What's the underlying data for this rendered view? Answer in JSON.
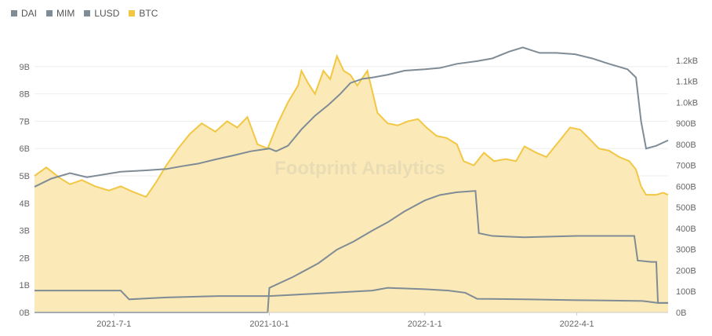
{
  "chart_data": {
    "type": "line",
    "watermark": "Footprint Analytics",
    "legend": {
      "placement": "top-left"
    },
    "colors": {
      "DAI": "#7f8c95",
      "MIM": "#7f8c95",
      "LUSD": "#7f8c95",
      "BTC": "#f2c744",
      "btc_fill": "#fbe9b8",
      "grid": "#eeeeee"
    },
    "x_ticks": [
      "2021-7-1",
      "2021-10-1",
      "2022-1-1",
      "2022-4-1"
    ],
    "y_left_ticks": [
      "0B",
      "1B",
      "2B",
      "3B",
      "4B",
      "5B",
      "6B",
      "7B",
      "8B",
      "9B"
    ],
    "y_right_ticks": [
      "0B",
      "100B",
      "200B",
      "300B",
      "400B",
      "500B",
      "600B",
      "700B",
      "800B",
      "900B",
      "1.0kB",
      "1.1kB",
      "1.2kB"
    ],
    "ylim_left": [
      0,
      10
    ],
    "ylim_right": [
      0,
      1300
    ],
    "x_date_range": [
      "2021-05-15",
      "2022-05-25"
    ],
    "series": [
      {
        "name": "DAI",
        "axis": "left",
        "points": [
          [
            "2021-05-15",
            4.6
          ],
          [
            "2021-05-25",
            4.9
          ],
          [
            "2021-06-05",
            5.1
          ],
          [
            "2021-06-15",
            4.95
          ],
          [
            "2021-06-25",
            5.05
          ],
          [
            "2021-07-05",
            5.15
          ],
          [
            "2021-07-20",
            5.2
          ],
          [
            "2021-08-01",
            5.25
          ],
          [
            "2021-08-10",
            5.35
          ],
          [
            "2021-08-20",
            5.45
          ],
          [
            "2021-08-30",
            5.6
          ],
          [
            "2021-09-10",
            5.75
          ],
          [
            "2021-09-20",
            5.9
          ],
          [
            "2021-10-01",
            6.0
          ],
          [
            "2021-10-05",
            5.9
          ],
          [
            "2021-10-12",
            6.1
          ],
          [
            "2021-10-20",
            6.7
          ],
          [
            "2021-10-28",
            7.2
          ],
          [
            "2021-11-05",
            7.6
          ],
          [
            "2021-11-12",
            8.0
          ],
          [
            "2021-11-18",
            8.4
          ],
          [
            "2021-11-25",
            8.55
          ],
          [
            "2021-12-01",
            8.6
          ],
          [
            "2021-12-10",
            8.7
          ],
          [
            "2021-12-20",
            8.85
          ],
          [
            "2022-01-01",
            8.9
          ],
          [
            "2022-01-10",
            8.95
          ],
          [
            "2022-01-20",
            9.1
          ],
          [
            "2022-02-01",
            9.2
          ],
          [
            "2022-02-10",
            9.3
          ],
          [
            "2022-02-20",
            9.55
          ],
          [
            "2022-02-28",
            9.7
          ],
          [
            "2022-03-05",
            9.6
          ],
          [
            "2022-03-10",
            9.5
          ],
          [
            "2022-03-20",
            9.5
          ],
          [
            "2022-03-31",
            9.45
          ],
          [
            "2022-04-10",
            9.3
          ],
          [
            "2022-04-20",
            9.1
          ],
          [
            "2022-05-01",
            8.9
          ],
          [
            "2022-05-06",
            8.6
          ],
          [
            "2022-05-09",
            7.0
          ],
          [
            "2022-05-12",
            6.0
          ],
          [
            "2022-05-18",
            6.1
          ],
          [
            "2022-05-25",
            6.3
          ]
        ]
      },
      {
        "name": "MIM",
        "axis": "left",
        "points": [
          [
            "2021-05-15",
            0
          ],
          [
            "2021-09-30",
            0
          ],
          [
            "2021-10-01",
            0.9
          ],
          [
            "2021-10-15",
            1.3
          ],
          [
            "2021-10-30",
            1.8
          ],
          [
            "2021-11-10",
            2.3
          ],
          [
            "2021-11-20",
            2.6
          ],
          [
            "2021-12-01",
            3.0
          ],
          [
            "2021-12-10",
            3.3
          ],
          [
            "2021-12-20",
            3.7
          ],
          [
            "2022-01-01",
            4.1
          ],
          [
            "2022-01-10",
            4.3
          ],
          [
            "2022-01-20",
            4.4
          ],
          [
            "2022-01-31",
            4.45
          ],
          [
            "2022-02-02",
            2.9
          ],
          [
            "2022-02-10",
            2.8
          ],
          [
            "2022-03-01",
            2.75
          ],
          [
            "2022-04-01",
            2.8
          ],
          [
            "2022-05-05",
            2.8
          ],
          [
            "2022-05-07",
            1.9
          ],
          [
            "2022-05-15",
            1.85
          ],
          [
            "2022-05-18",
            1.85
          ],
          [
            "2022-05-19",
            0.35
          ],
          [
            "2022-05-25",
            0.35
          ]
        ]
      },
      {
        "name": "LUSD",
        "axis": "left",
        "points": [
          [
            "2021-05-15",
            0.8
          ],
          [
            "2021-07-05",
            0.8
          ],
          [
            "2021-07-10",
            0.48
          ],
          [
            "2021-08-01",
            0.55
          ],
          [
            "2021-09-01",
            0.6
          ],
          [
            "2021-10-01",
            0.6
          ],
          [
            "2021-11-01",
            0.7
          ],
          [
            "2021-12-01",
            0.8
          ],
          [
            "2021-12-10",
            0.9
          ],
          [
            "2022-01-01",
            0.85
          ],
          [
            "2022-01-15",
            0.8
          ],
          [
            "2022-01-25",
            0.72
          ],
          [
            "2022-02-01",
            0.5
          ],
          [
            "2022-03-01",
            0.48
          ],
          [
            "2022-04-01",
            0.45
          ],
          [
            "2022-05-10",
            0.42
          ],
          [
            "2022-05-19",
            0.35
          ],
          [
            "2022-05-25",
            0.35
          ]
        ]
      },
      {
        "name": "BTC",
        "axis": "right",
        "points": [
          [
            "2021-05-15",
            650
          ],
          [
            "2021-05-22",
            690
          ],
          [
            "2021-05-30",
            640
          ],
          [
            "2021-06-05",
            610
          ],
          [
            "2021-06-12",
            630
          ],
          [
            "2021-06-20",
            600
          ],
          [
            "2021-06-28",
            580
          ],
          [
            "2021-07-05",
            600
          ],
          [
            "2021-07-12",
            575
          ],
          [
            "2021-07-20",
            550
          ],
          [
            "2021-07-26",
            620
          ],
          [
            "2021-08-01",
            700
          ],
          [
            "2021-08-08",
            780
          ],
          [
            "2021-08-15",
            850
          ],
          [
            "2021-08-22",
            900
          ],
          [
            "2021-08-30",
            860
          ],
          [
            "2021-09-06",
            910
          ],
          [
            "2021-09-12",
            880
          ],
          [
            "2021-09-18",
            930
          ],
          [
            "2021-09-24",
            800
          ],
          [
            "2021-09-30",
            780
          ],
          [
            "2021-10-06",
            900
          ],
          [
            "2021-10-12,",
            1000
          ],
          [
            "2021-10-18",
            1080
          ],
          [
            "2021-10-20",
            1150
          ],
          [
            "2021-10-24",
            1090
          ],
          [
            "2021-10-28",
            1040
          ],
          [
            "2021-11-02",
            1150
          ],
          [
            "2021-11-06",
            1110
          ],
          [
            "2021-11-10",
            1220
          ],
          [
            "2021-11-14",
            1150
          ],
          [
            "2021-11-18",
            1130
          ],
          [
            "2021-11-22",
            1080
          ],
          [
            "2021-11-28",
            1150
          ],
          [
            "2021-12-04",
            950
          ],
          [
            "2021-12-10",
            900
          ],
          [
            "2021-12-16",
            890
          ],
          [
            "2021-12-22",
            910
          ],
          [
            "2021-12-28",
            920
          ],
          [
            "2022-01-02",
            880
          ],
          [
            "2022-01-08",
            840
          ],
          [
            "2022-01-14",
            830
          ],
          [
            "2022-01-20",
            800
          ],
          [
            "2022-01-24",
            720
          ],
          [
            "2022-01-30",
            700
          ],
          [
            "2022-02-05",
            760
          ],
          [
            "2022-02-11",
            720
          ],
          [
            "2022-02-18",
            730
          ],
          [
            "2022-02-24",
            720
          ],
          [
            "2022-03-01",
            790
          ],
          [
            "2022-03-08",
            760
          ],
          [
            "2022-03-14",
            740
          ],
          [
            "2022-03-20",
            800
          ],
          [
            "2022-03-28",
            880
          ],
          [
            "2022-04-03",
            870
          ],
          [
            "2022-04-08",
            830
          ],
          [
            "2022-04-14",
            780
          ],
          [
            "2022-04-20",
            770
          ],
          [
            "2022-04-26",
            740
          ],
          [
            "2022-05-02",
            720
          ],
          [
            "2022-05-06",
            680
          ],
          [
            "2022-05-09",
            600
          ],
          [
            "2022-05-12",
            560
          ],
          [
            "2022-05-18",
            560
          ],
          [
            "2022-05-22",
            570
          ],
          [
            "2022-05-25",
            560
          ]
        ]
      }
    ]
  }
}
